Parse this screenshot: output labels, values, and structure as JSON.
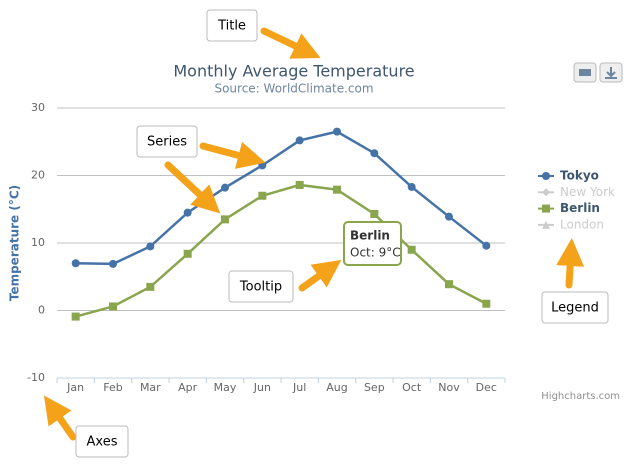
{
  "chart_data": {
    "type": "line",
    "title": "Monthly Average Temperature",
    "subtitle": "Source: WorldClimate.com",
    "y_axis_label": "Temperature (°C)",
    "categories": [
      "Jan",
      "Feb",
      "Mar",
      "Apr",
      "May",
      "Jun",
      "Jul",
      "Aug",
      "Sep",
      "Oct",
      "Nov",
      "Dec"
    ],
    "series": [
      {
        "name": "Tokyo",
        "color": "#4572A7",
        "marker": "circle",
        "visible": true,
        "values": [
          7.0,
          6.9,
          9.5,
          14.5,
          18.2,
          21.5,
          25.2,
          26.5,
          23.3,
          18.3,
          13.9,
          9.6
        ]
      },
      {
        "name": "New York",
        "color": "#AA4643",
        "marker": "diamond",
        "visible": false
      },
      {
        "name": "Berlin",
        "color": "#89A54E",
        "marker": "square",
        "visible": true,
        "values": [
          -0.9,
          0.6,
          3.5,
          8.4,
          13.5,
          17.0,
          18.6,
          17.9,
          14.3,
          9.0,
          3.9,
          1.0
        ]
      },
      {
        "name": "London",
        "color": "#80699B",
        "marker": "triangle",
        "visible": false
      }
    ],
    "ylim": [
      -10,
      30
    ],
    "yticks": [
      -10,
      0,
      10,
      20,
      30
    ],
    "grid": true,
    "legend": "right",
    "tooltip": {
      "series": "Berlin",
      "text": "Oct: 9°C"
    },
    "credit": "Highcharts.com",
    "annotations": [
      "Title",
      "Series",
      "Tooltip",
      "Legend",
      "Axes"
    ]
  }
}
